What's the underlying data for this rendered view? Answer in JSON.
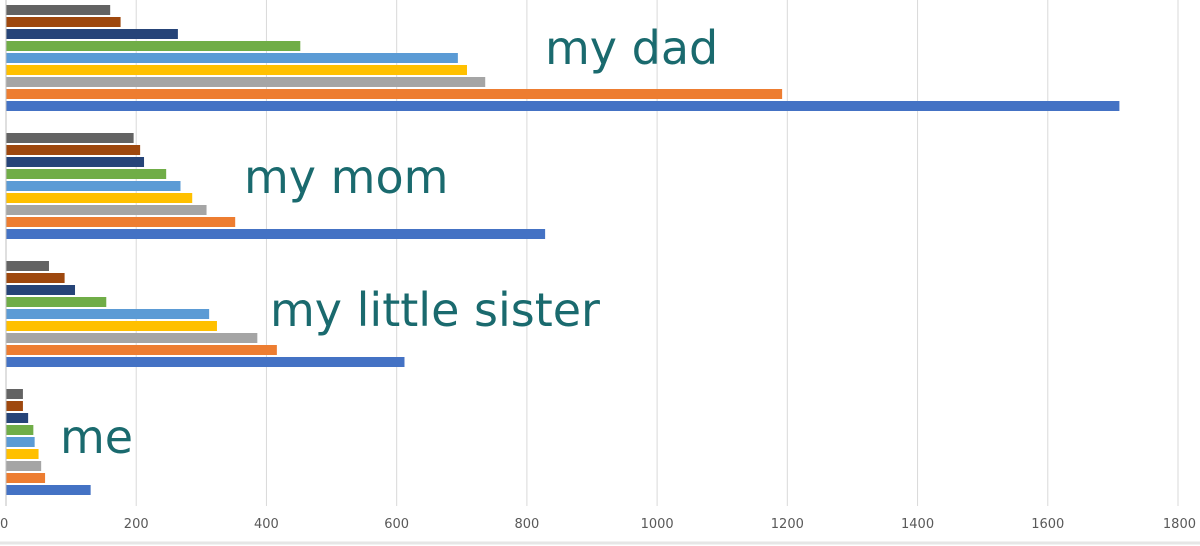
{
  "chart_data": {
    "type": "bar",
    "orientation": "horizontal",
    "categories": [
      "my dad",
      "my mom",
      "my little sister",
      "me"
    ],
    "xlim": [
      0,
      1800
    ],
    "x_ticks": [
      "0",
      "200",
      "400",
      "600",
      "800",
      "1000",
      "1200",
      "1400",
      "1600",
      "1800"
    ],
    "grid": true,
    "legend": "none",
    "series": [
      {
        "color": "#4472c4",
        "values": [
          1710,
          828,
          612,
          130
        ]
      },
      {
        "color": "#ed7d31",
        "values": [
          1192,
          352,
          416,
          60
        ]
      },
      {
        "color": "#a5a5a5",
        "values": [
          736,
          308,
          386,
          54
        ]
      },
      {
        "color": "#ffc000",
        "values": [
          708,
          286,
          324,
          50
        ]
      },
      {
        "color": "#5b9bd5",
        "values": [
          694,
          268,
          312,
          44
        ]
      },
      {
        "color": "#70ad47",
        "values": [
          452,
          246,
          154,
          42
        ]
      },
      {
        "color": "#264478",
        "values": [
          264,
          212,
          106,
          34
        ]
      },
      {
        "color": "#9e480e",
        "values": [
          176,
          206,
          90,
          26
        ]
      },
      {
        "color": "#636363",
        "values": [
          160,
          196,
          66,
          26
        ]
      }
    ]
  }
}
